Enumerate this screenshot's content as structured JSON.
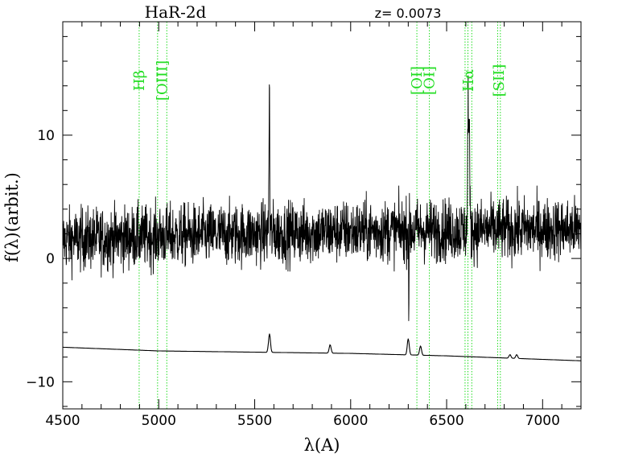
{
  "chart_data": {
    "type": "line",
    "title": "HaR-2d",
    "redshift_label": "z=  0.0073",
    "xlabel": "λ(A)",
    "ylabel": "f(λ)(arbit.)",
    "xlim": [
      4500,
      7200
    ],
    "ylim": [
      -12.2,
      19.2
    ],
    "x_ticks": [
      4500,
      5000,
      5500,
      6000,
      6500,
      7000
    ],
    "x_tick_labels": [
      "4500",
      "5000",
      "5500",
      "6000",
      "6500",
      "7000"
    ],
    "y_ticks": [
      -10,
      0,
      10
    ],
    "y_tick_labels": [
      "−10",
      "0",
      "10"
    ],
    "grid": false,
    "series": [
      {
        "role": "object spectrum",
        "color": "#000000",
        "noise_amplitude": 1.8,
        "continuum": [
          [
            4500,
            1.5
          ],
          [
            5000,
            1.8
          ],
          [
            5500,
            2.0
          ],
          [
            6000,
            2.2
          ],
          [
            6500,
            2.3
          ],
          [
            7200,
            2.4
          ]
        ],
        "features": [
          {
            "x": 5577,
            "peak": 14.2,
            "trough": -5.2,
            "type": "sky-residual"
          },
          {
            "x": 6300,
            "trough": -4.5,
            "type": "sky-residual"
          },
          {
            "x": 6612,
            "peak": 12.6,
            "type": "emission"
          },
          {
            "x": 6618,
            "peak": 9.8,
            "type": "emission"
          }
        ]
      },
      {
        "role": "sky spectrum",
        "color": "#000000",
        "continuum": [
          [
            4500,
            -7.2
          ],
          [
            5000,
            -7.5
          ],
          [
            5500,
            -7.6
          ],
          [
            6000,
            -7.7
          ],
          [
            6500,
            -7.9
          ],
          [
            7200,
            -8.3
          ]
        ],
        "features": [
          {
            "x": 5577,
            "peak": -6.1
          },
          {
            "x": 5893,
            "peak": -7.0
          },
          {
            "x": 6300,
            "peak": -6.5
          },
          {
            "x": 6364,
            "peak": -7.1
          },
          {
            "x": 6830,
            "peak": -7.8
          },
          {
            "x": 6865,
            "peak": -7.8
          }
        ]
      }
    ],
    "line_markers": [
      {
        "label": "Hβ",
        "x": [
          4898
        ]
      },
      {
        "label": "[OIII]",
        "x": [
          4994,
          5042
        ]
      },
      {
        "label": "[OI]",
        "x": [
          6345
        ]
      },
      {
        "label": "[OI]",
        "x": [
          6410
        ]
      },
      {
        "label": "Hα",
        "x": [
          6596,
          6611,
          6631
        ]
      },
      {
        "label": "[SII]",
        "x": [
          6766,
          6780
        ]
      }
    ],
    "marker_color": "#22dd22"
  }
}
